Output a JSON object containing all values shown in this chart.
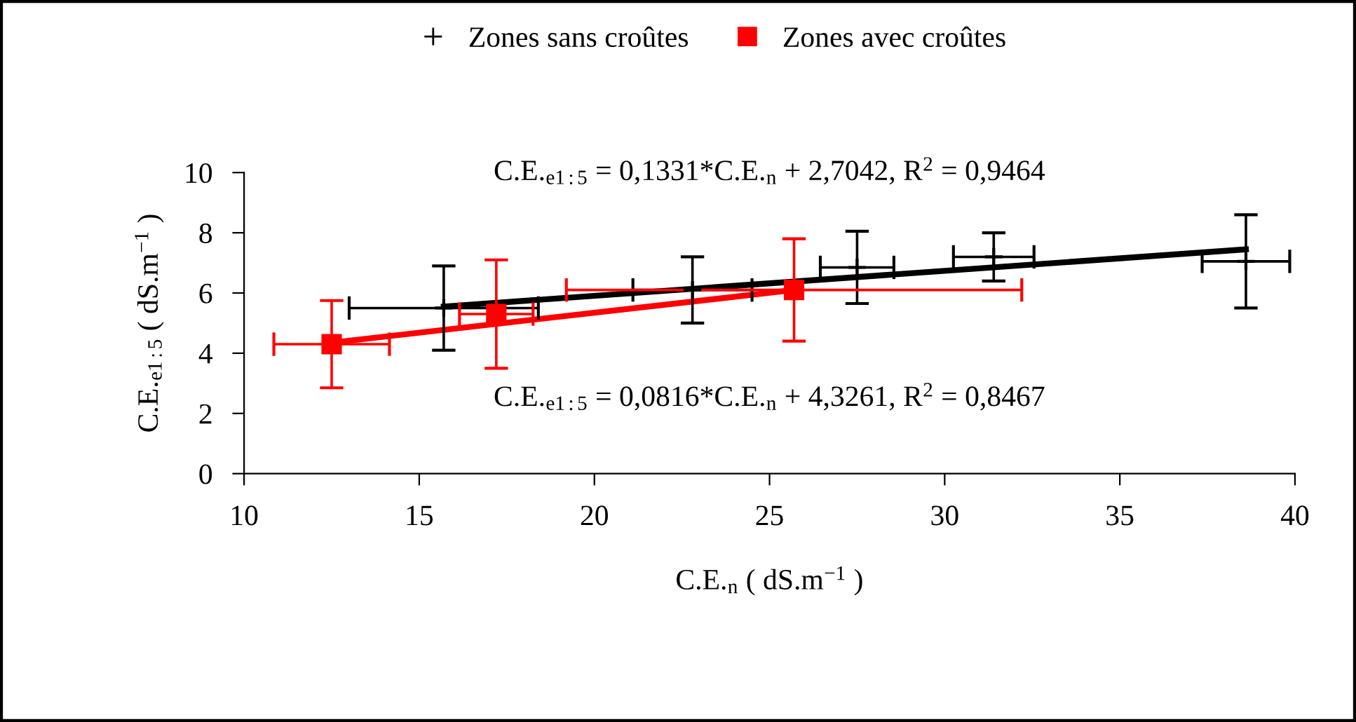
{
  "chart_data": {
    "type": "scatter",
    "xlabel": "C.E.$_{n}$ ( dS.m$^{−1}$ )",
    "ylabel": "C.E.$_{e1:5}$ ( dS.m$^{−1}$ )",
    "xlim": [
      10,
      40
    ],
    "xticks": [
      10,
      15,
      20,
      25,
      30,
      35,
      40
    ],
    "ylim": [
      0,
      10
    ],
    "yticks": [
      0,
      2,
      4,
      6,
      8,
      10
    ],
    "grid": false,
    "legend": "top",
    "annotations": [
      "C.E.$_{e1:5}$ = 0,1331*C.E.$_{n}$ + 2,7042, R$^{2}$ = 0,9464",
      "C.E.$_{e1:5}$ = 0,0816*C.E.$_{n}$ + 4,3261, R$^{2}$ = 0,8467"
    ],
    "series": [
      {
        "name": "Zones sans croûtes",
        "color": "#000000",
        "marker": "cross",
        "x": [
          15.7,
          22.8,
          27.5,
          31.4,
          38.6
        ],
        "values": [
          5.5,
          6.1,
          6.85,
          7.2,
          7.05
        ],
        "errors": [
          1.4,
          1.1,
          1.2,
          0.8,
          1.55
        ],
        "xerrors": [
          2.7,
          1.7,
          1.05,
          1.15,
          1.25
        ]
      },
      {
        "name": "Zones avec croûtes",
        "color": "#ff0000",
        "marker": "square",
        "x": [
          12.5,
          17.2,
          25.7
        ],
        "values": [
          4.3,
          5.3,
          6.1
        ],
        "errors": [
          1.45,
          1.8,
          1.7
        ],
        "xerrors": [
          1.65,
          1.05,
          6.5
        ]
      },
      {
        "type": "line",
        "color": "#000000",
        "x": [
          15.7,
          38.6
        ],
        "values": [
          5.55,
          7.45
        ]
      },
      {
        "type": "line",
        "color": "#ff0000",
        "x": [
          12.5,
          25.7
        ],
        "values": [
          4.35,
          6.1
        ]
      }
    ]
  }
}
